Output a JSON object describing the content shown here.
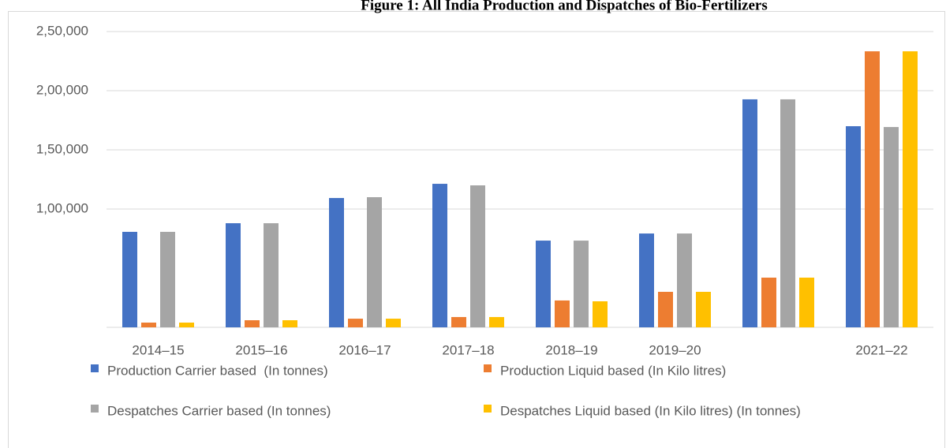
{
  "chart_data": {
    "type": "bar",
    "title": "Figure 1: All India Production and Dispatches of Bio-Fertilizers",
    "categories": [
      "2014–15",
      "2015–16",
      "2016–17",
      "2017–18",
      "2018–19",
      "2019–20",
      null,
      "2021–22"
    ],
    "series": [
      {
        "name": "Production Carrier based  (In tonnes)",
        "color": "#4472c4",
        "values": [
          80700,
          88000,
          109300,
          121300,
          73300,
          79300,
          192700,
          170000
        ]
      },
      {
        "name": "Production Liquid based (In Kilo litres)",
        "color": "#ed7d31",
        "values": [
          4000,
          6000,
          7300,
          8700,
          22700,
          30000,
          42000,
          233300
        ]
      },
      {
        "name": "Despatches Carrier based (In tonnes)",
        "color": "#a5a5a5",
        "values": [
          80700,
          88000,
          110000,
          120000,
          73300,
          79300,
          192700,
          169300
        ]
      },
      {
        "name": "Despatches Liquid based (In Kilo litres) (In tonnes)",
        "color": "#ffc000",
        "values": [
          4000,
          6000,
          7300,
          8700,
          22000,
          30000,
          42000,
          233300
        ]
      }
    ],
    "ylim": [
      0,
      250000
    ],
    "yticks": [
      {
        "value": 100000,
        "label": "1,00,000"
      },
      {
        "value": 150000,
        "label": "1,50,000"
      },
      {
        "value": 200000,
        "label": "2,00,000"
      },
      {
        "value": 250000,
        "label": "2,50,000"
      }
    ],
    "grid": true,
    "legend": "bottom"
  }
}
